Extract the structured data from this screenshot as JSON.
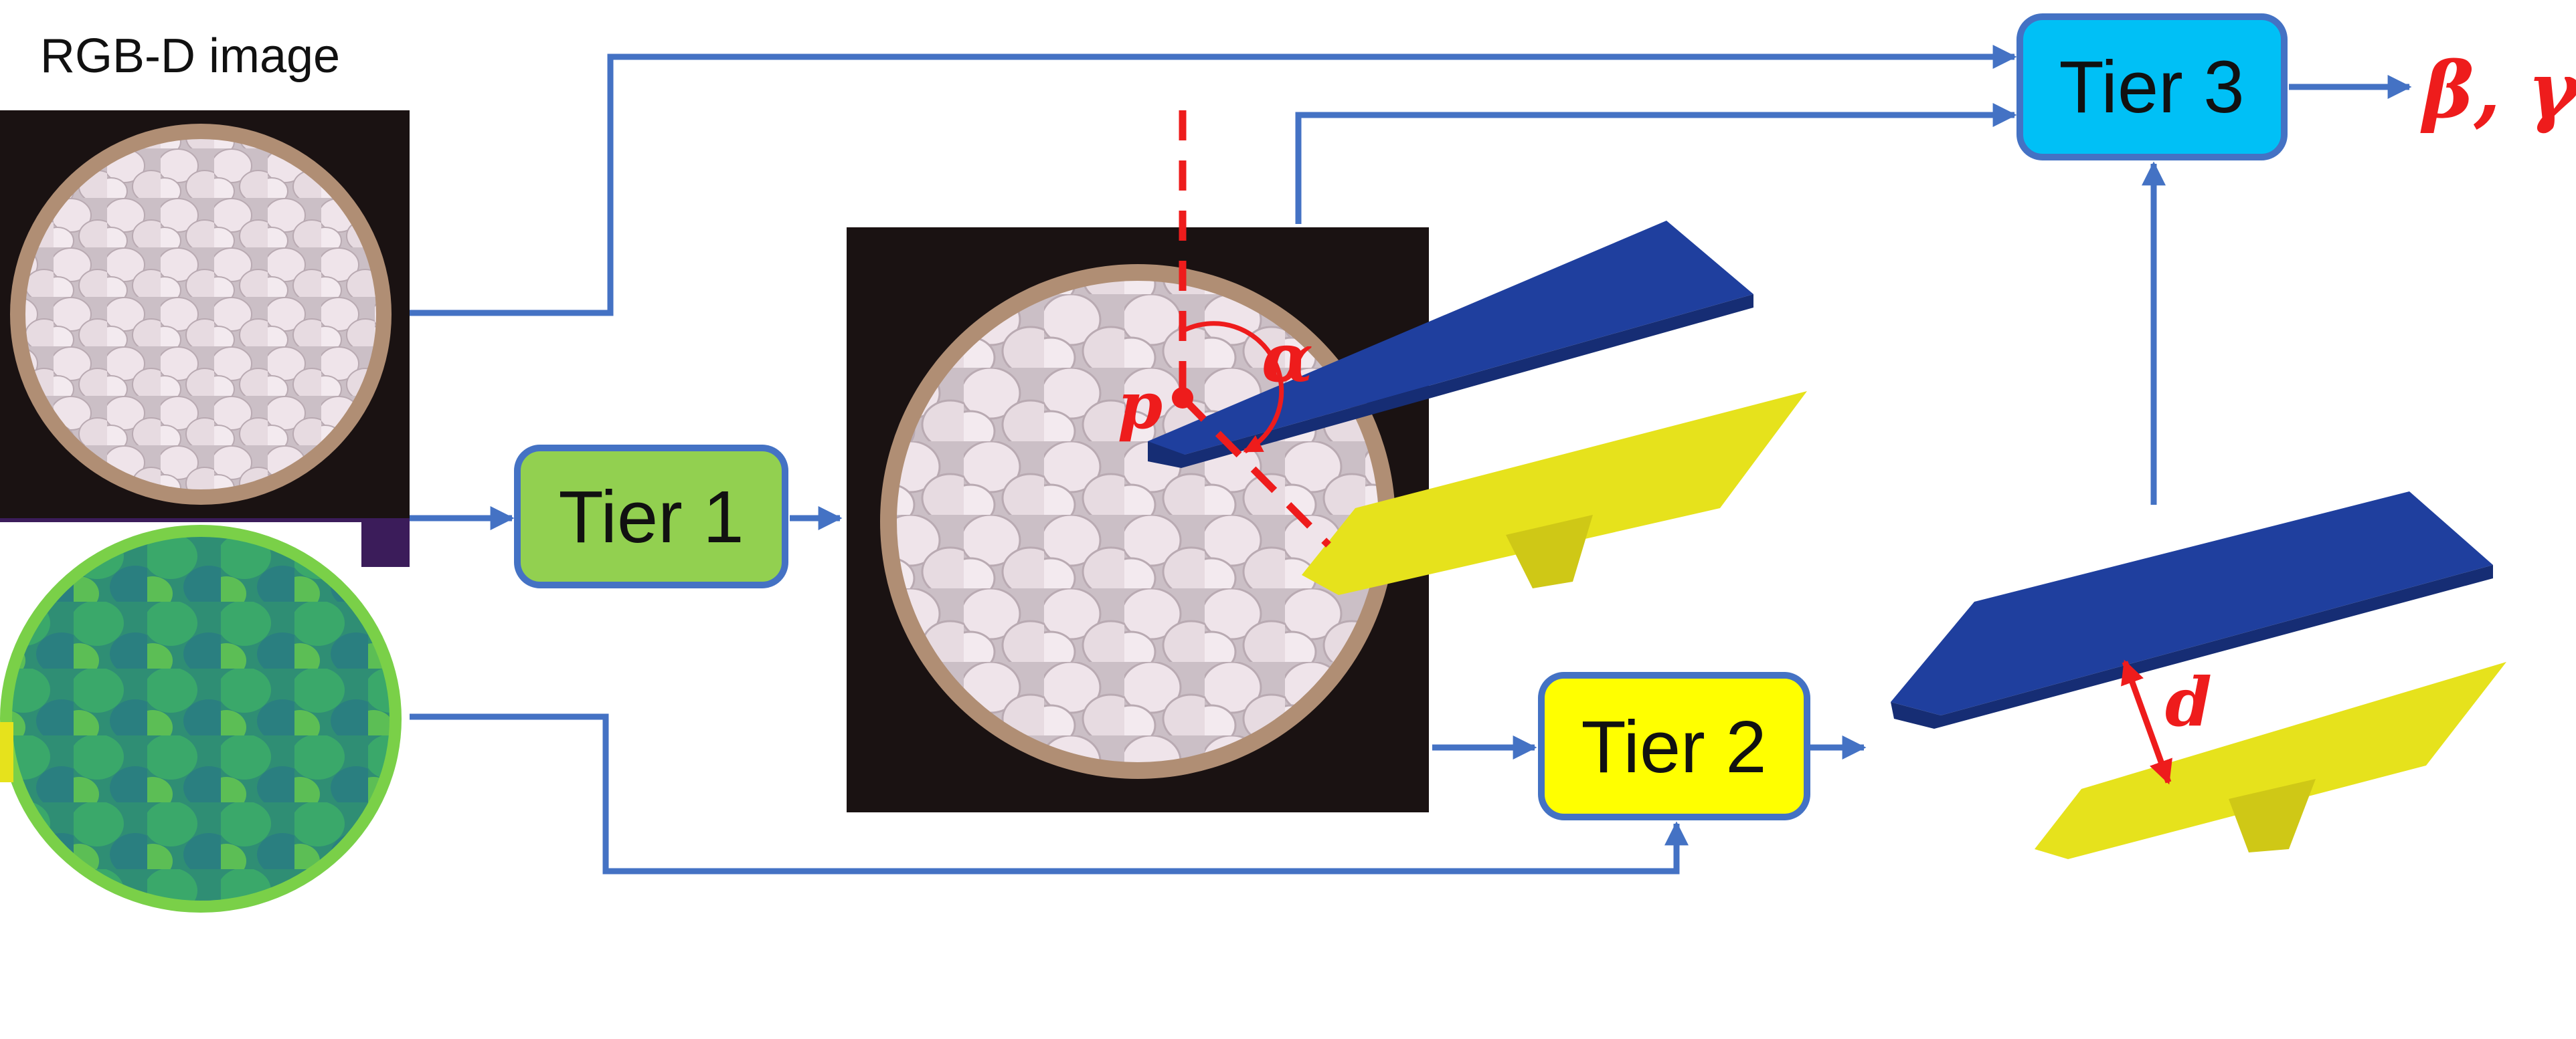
{
  "caption": "RGB-D image",
  "tiers": {
    "tier1": {
      "label": "Tier 1",
      "color": "#92d050"
    },
    "tier2": {
      "label": "Tier 2",
      "color": "#ffff00"
    },
    "tier3": {
      "label": "Tier 3",
      "color": "#00c0f6"
    }
  },
  "symbols": {
    "alpha": "α",
    "p": "p",
    "d": "d",
    "output": "β, γ"
  },
  "colors": {
    "arrow": "#4472c4",
    "box_border": "#4472c4",
    "annotation": "#ee1c1c",
    "blue_gripper": "#1f3f9e",
    "yellow_gripper": "#e6e21c",
    "depth_green": "#2e9e6e",
    "rgb_background": "#1a1212",
    "coin_white": "#e9dde3"
  }
}
